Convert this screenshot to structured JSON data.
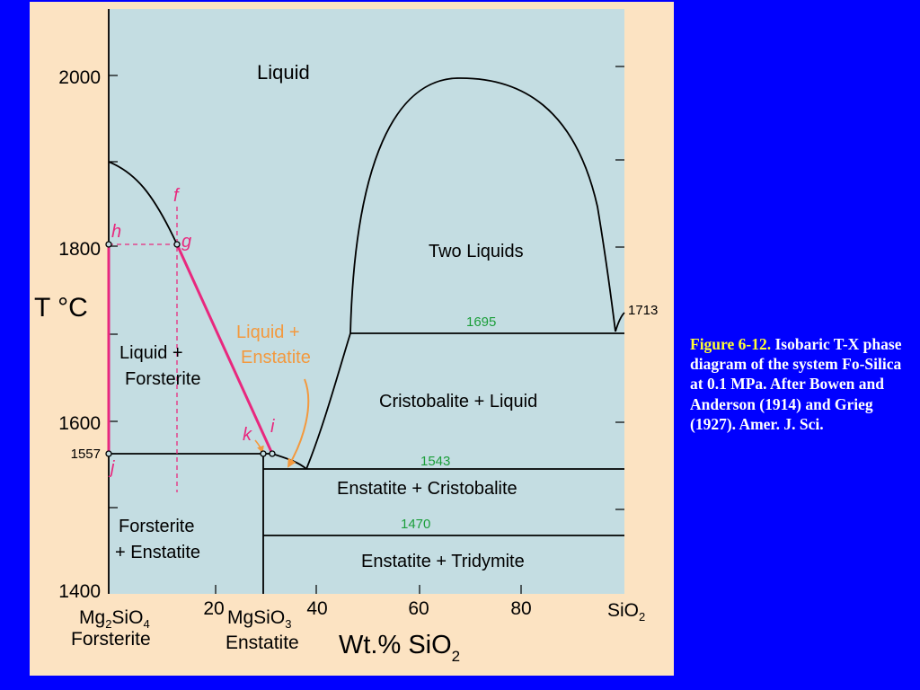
{
  "colors": {
    "background": "#0000ff",
    "panel": "#fce3c2",
    "plot_area": "#c4dde2",
    "phase_line": "#000000",
    "path_magenta": "#e8287e",
    "path_orange": "#f3993e",
    "isotherm_label": "#1b9e3a",
    "caption_text": "#ffffff",
    "caption_label": "#ffff33"
  },
  "diagram": {
    "y_axis": {
      "label": "T °C",
      "ticks": [
        "2000",
        "1800",
        "1600",
        "1400"
      ],
      "tick_values": [
        2000,
        1800,
        1600,
        1400
      ]
    },
    "x_axis": {
      "ticks": [
        "20",
        "40",
        "60",
        "80"
      ],
      "tick_values": [
        20,
        40,
        60,
        80
      ],
      "label_main": "Wt.% SiO",
      "label_sub": "2"
    },
    "endmembers": {
      "left_formula": {
        "a": "Mg",
        "b": "2",
        "c": "SiO",
        "d": "4"
      },
      "left_name": "Forsterite",
      "mid_formula": {
        "a": "MgSiO",
        "b": "3"
      },
      "mid_name": "Enstatite",
      "right_formula": {
        "a": "SiO",
        "b": "2"
      }
    },
    "fields": {
      "liquid": "Liquid",
      "two_liquids": "Two Liquids",
      "liquid_forsterite_1": "Liquid +",
      "liquid_forsterite_2": "Forsterite",
      "liquid_enstatite_1": "Liquid +",
      "liquid_enstatite_2": "Enstatite",
      "cristobalite_liquid": "Cristobalite + Liquid",
      "enstatite_cristobalite": "Enstatite + Cristobalite",
      "forsterite_enstatite_1": "Forsterite",
      "forsterite_enstatite_2": "+ Enstatite",
      "enstatite_tridymite": "Enstatite + Tridymite"
    },
    "isotherms": {
      "t1695": "1695",
      "t1543": "1543",
      "t1470": "1470",
      "t1713": "1713",
      "t1557": "1557"
    },
    "points": {
      "f": "f",
      "g": "g",
      "h": "h",
      "i": "i",
      "j": "j",
      "k": "k"
    }
  },
  "caption": {
    "label": "Figure 6-12.",
    "text": " Isobaric T-X phase diagram of the system Fo-Silica at 0.1 MPa. After Bowen and Anderson (1914) and Grieg (1927). Amer. J. Sci."
  }
}
